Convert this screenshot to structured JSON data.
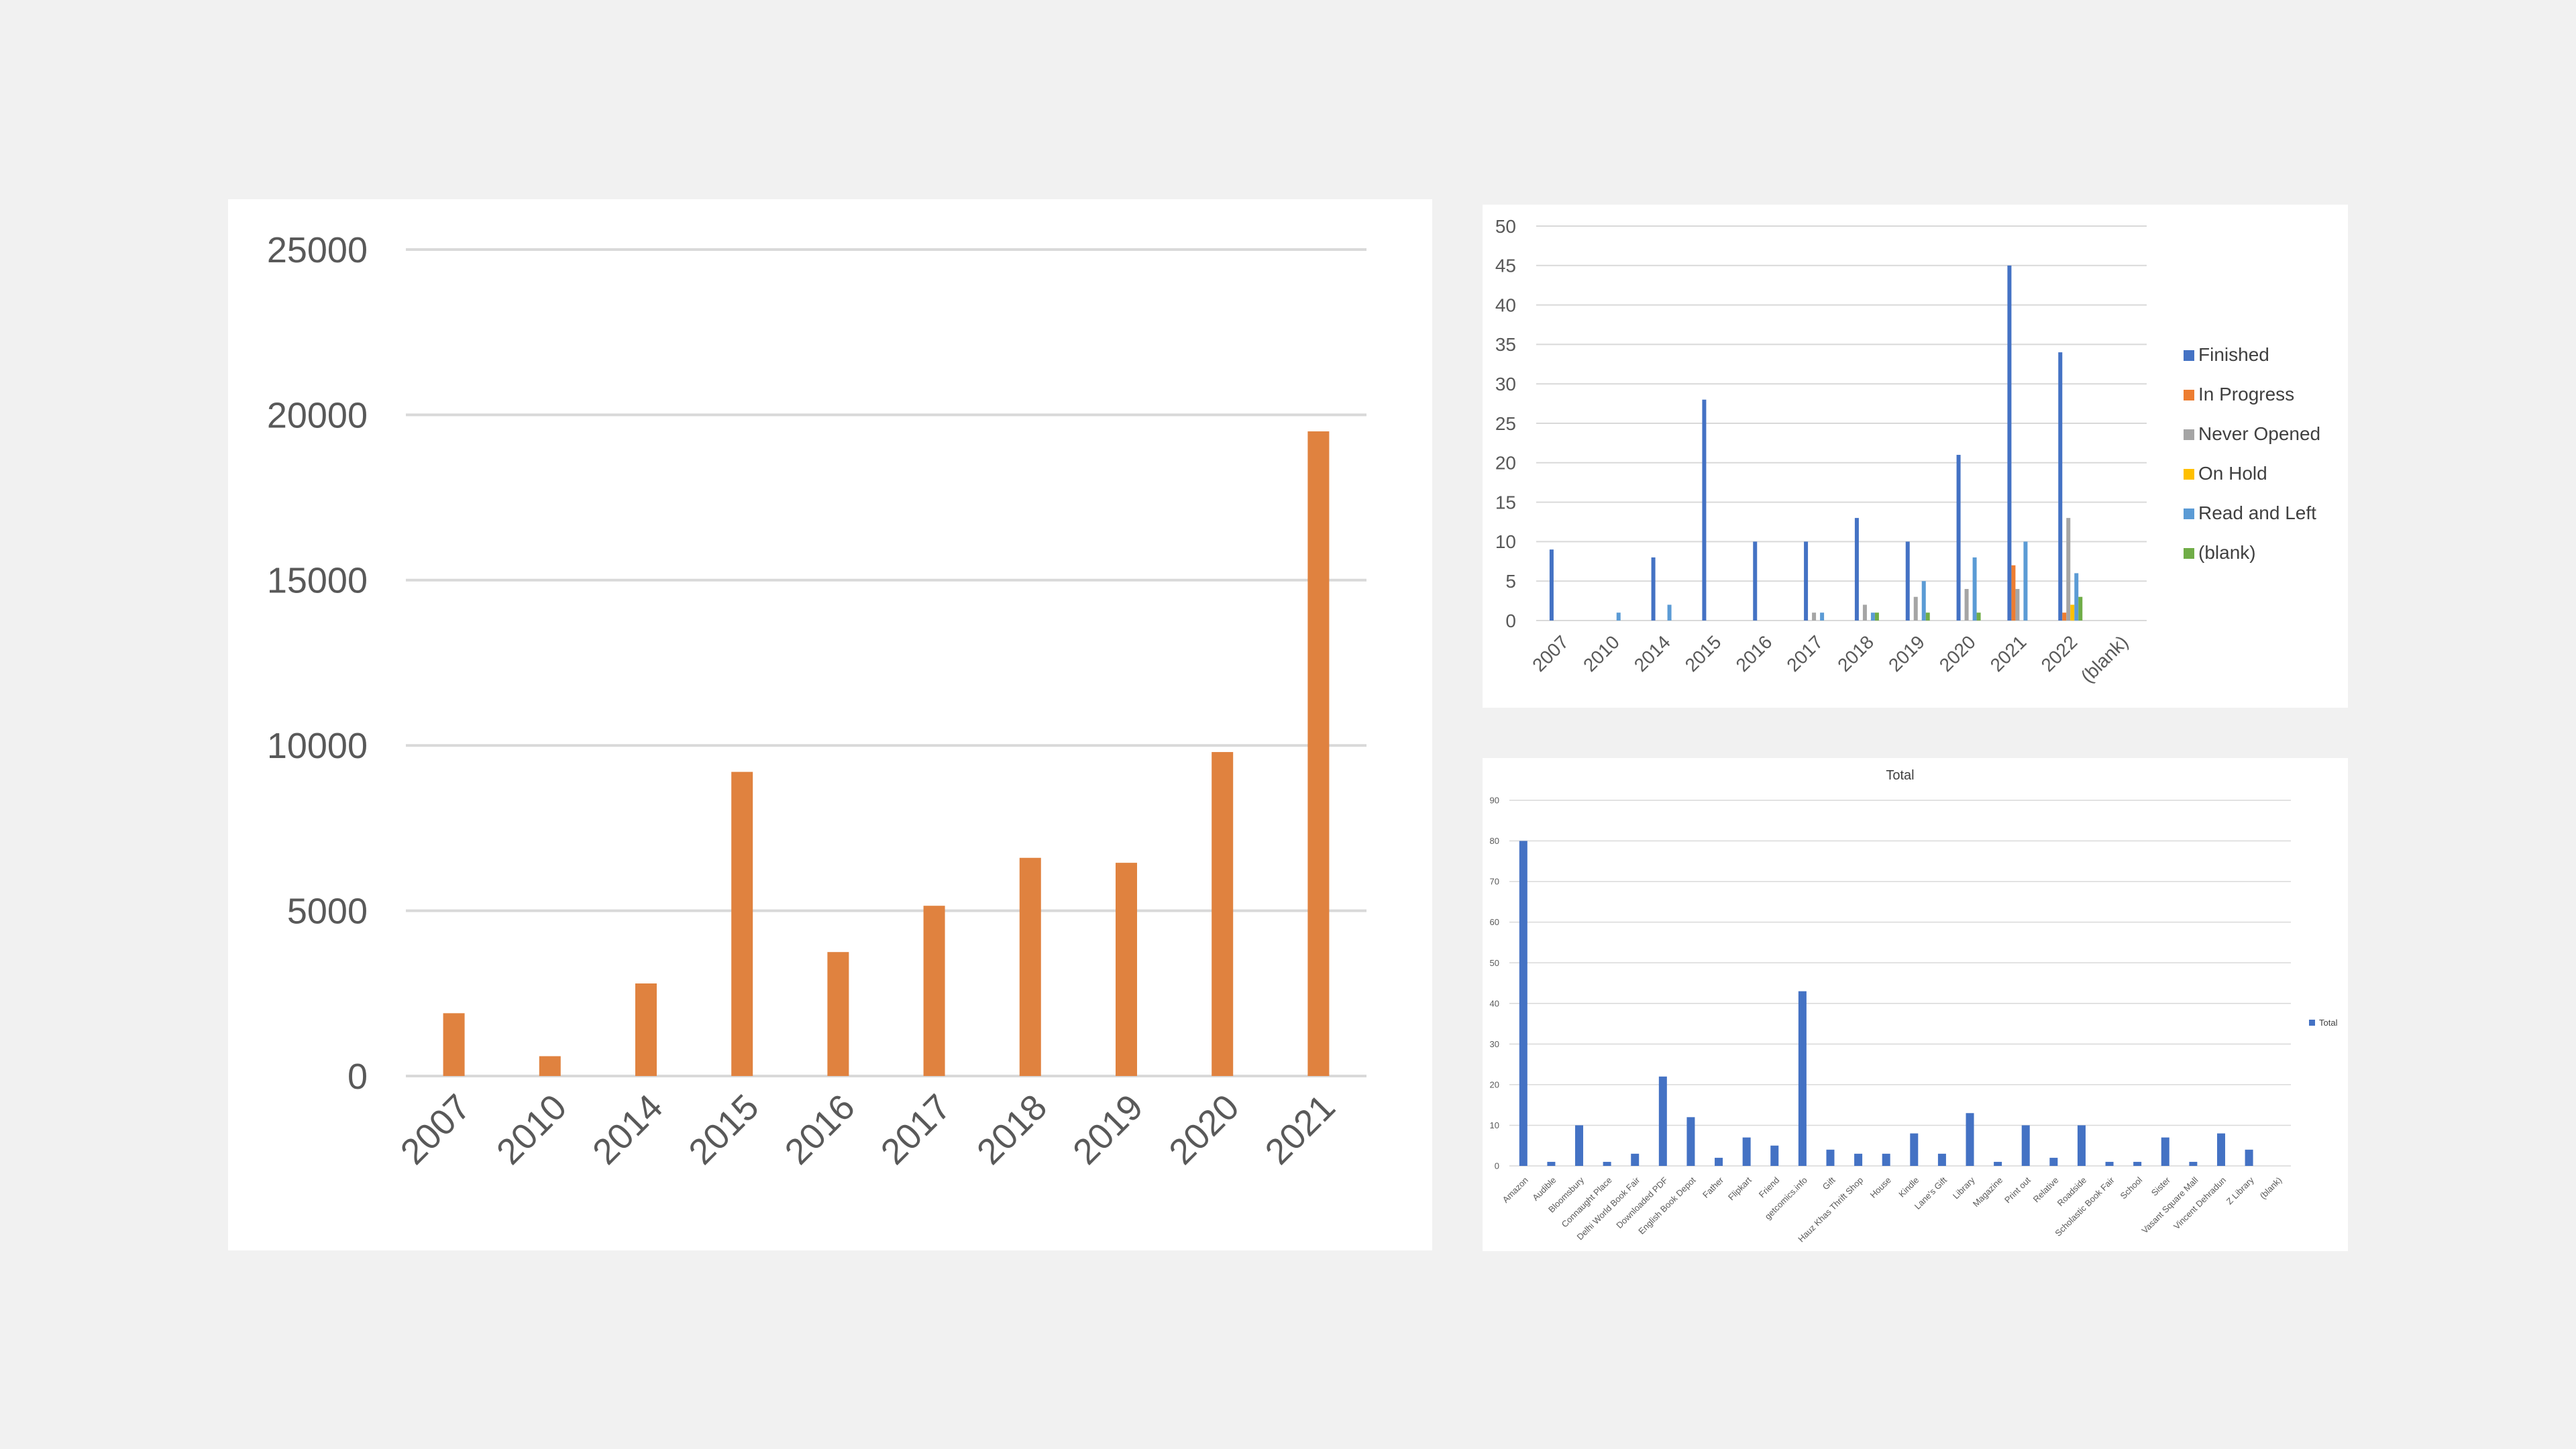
{
  "colors": {
    "orange": "#e0823f",
    "blue": "#4472c4",
    "gray": "#a5a5a5",
    "yellow": "#ffc000",
    "lightblue": "#5b9bd5",
    "green": "#70ad47",
    "tick_text": "#595959",
    "grid": "#d9d9d9"
  },
  "chart_data": [
    {
      "type": "bar",
      "categories": [
        "2007",
        "2010",
        "2014",
        "2015",
        "2016",
        "2017",
        "2018",
        "2019",
        "2020",
        "2021"
      ],
      "values": [
        1900,
        600,
        2800,
        9200,
        3750,
        5150,
        6600,
        6450,
        9800,
        19500
      ],
      "ylim": [
        0,
        25000
      ],
      "yticks": [
        0,
        5000,
        10000,
        15000,
        20000,
        25000
      ],
      "grid": true,
      "legend": "none"
    },
    {
      "type": "bar",
      "categories": [
        "2007",
        "2010",
        "2014",
        "2015",
        "2016",
        "2017",
        "2018",
        "2019",
        "2020",
        "2021",
        "2022",
        "(blank)"
      ],
      "series": [
        {
          "name": "Finished",
          "color": "#4472c4",
          "values": [
            9,
            0,
            8,
            28,
            10,
            10,
            13,
            10,
            21,
            45,
            34,
            0
          ]
        },
        {
          "name": "In Progress",
          "color": "#ed7d31",
          "values": [
            0,
            0,
            0,
            0,
            0,
            0,
            0,
            0,
            0,
            7,
            1,
            0
          ]
        },
        {
          "name": "Never Opened",
          "color": "#a5a5a5",
          "values": [
            0,
            0,
            0,
            0,
            0,
            1,
            2,
            3,
            4,
            4,
            13,
            0
          ]
        },
        {
          "name": "On Hold",
          "color": "#ffc000",
          "values": [
            0,
            0,
            0,
            0,
            0,
            0,
            0,
            0,
            0,
            0,
            2,
            0
          ]
        },
        {
          "name": "Read and Left",
          "color": "#5b9bd5",
          "values": [
            0,
            1,
            2,
            0,
            0,
            1,
            1,
            5,
            8,
            10,
            6,
            0
          ]
        },
        {
          "name": "(blank)",
          "color": "#70ad47",
          "values": [
            0,
            0,
            0,
            0,
            0,
            0,
            1,
            1,
            1,
            0,
            3,
            0
          ]
        }
      ],
      "ylim": [
        0,
        50
      ],
      "yticks": [
        0,
        5,
        10,
        15,
        20,
        25,
        30,
        35,
        40,
        45,
        50
      ],
      "grid": true,
      "legend": "right"
    },
    {
      "type": "bar",
      "title": "Total",
      "categories": [
        "Amazon",
        "Audible",
        "Bloomsbury",
        "Connaught Place",
        "Delhi World Book Fair",
        "Downloaded PDF",
        "English Book Depot",
        "Father",
        "Flipkart",
        "Friend",
        "getcomics.info",
        "Gift",
        "Hauz Khas Thrift Shop",
        "House",
        "Kindle",
        "Lane's Gift",
        "Library",
        "Magazine",
        "Print out",
        "Relative",
        "Roadside",
        "Scholastic Book Fair",
        "School",
        "Sister",
        "Vasant Square Mall",
        "Vincent Dehradun",
        "Z Library",
        "(blank)"
      ],
      "series": [
        {
          "name": "Total",
          "color": "#4472c4",
          "values": [
            80,
            1,
            10,
            1,
            3,
            22,
            12,
            2,
            7,
            5,
            43,
            4,
            3,
            3,
            8,
            3,
            13,
            1,
            10,
            2,
            10,
            1,
            1,
            7,
            1,
            8,
            4,
            0
          ]
        }
      ],
      "ylim": [
        0,
        90
      ],
      "yticks": [
        0,
        10,
        20,
        30,
        40,
        50,
        60,
        70,
        80,
        90
      ],
      "grid": true,
      "legend": "right"
    }
  ]
}
